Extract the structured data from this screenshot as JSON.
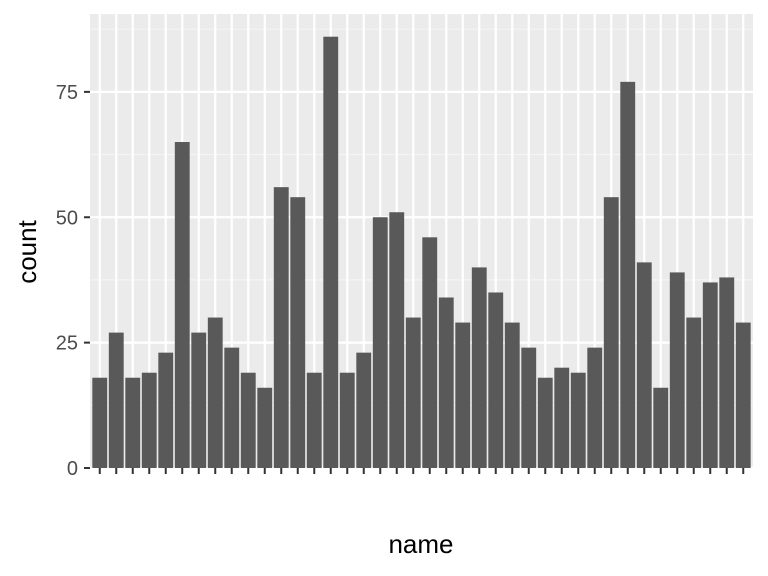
{
  "chart_data": {
    "type": "bar",
    "title": "",
    "xlabel": "name",
    "ylabel": "count",
    "ylim": [
      0,
      90
    ],
    "y_ticks": [
      0,
      25,
      50,
      75
    ],
    "grid": true,
    "categories": [
      "",
      "",
      "",
      "",
      "",
      "",
      "",
      "",
      "",
      "",
      "",
      "",
      "",
      "",
      "",
      "",
      "",
      "",
      "",
      "",
      "",
      "",
      "",
      "",
      "",
      "",
      "",
      "",
      "",
      "",
      "",
      "",
      "",
      "",
      "",
      "",
      "",
      "",
      "",
      ""
    ],
    "values": [
      18,
      27,
      18,
      19,
      23,
      65,
      27,
      30,
      24,
      19,
      16,
      56,
      54,
      19,
      86,
      19,
      23,
      50,
      51,
      30,
      46,
      34,
      29,
      40,
      35,
      29,
      24,
      18,
      20,
      19,
      24,
      54,
      77,
      41,
      16,
      39,
      30,
      37,
      38,
      29
    ],
    "colors": {
      "bar": "#595959",
      "panel": "#ebebeb",
      "grid_major": "#ffffff",
      "grid_minor": "#f5f5f5",
      "tick": "#333333"
    }
  }
}
